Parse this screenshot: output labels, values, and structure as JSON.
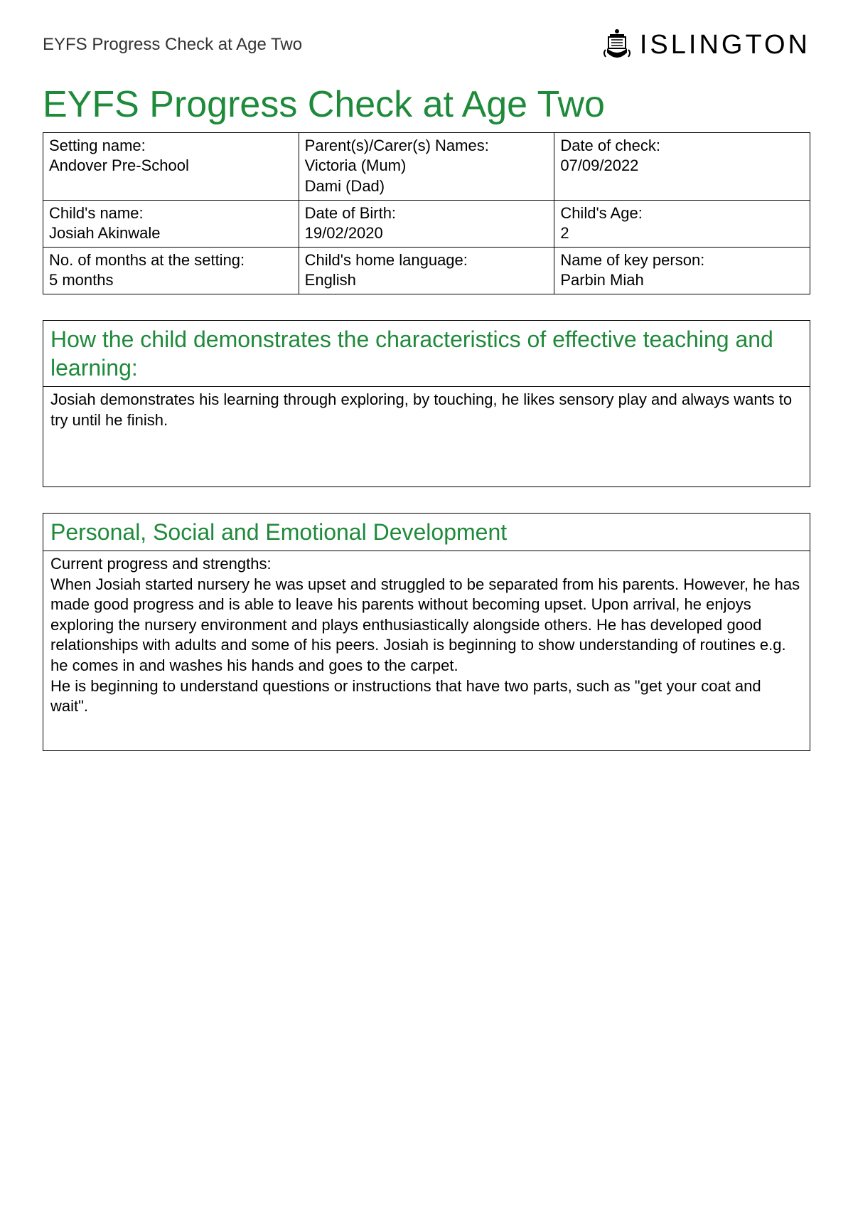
{
  "colors": {
    "accent_green": "#1e8a3a",
    "text": "#000000",
    "header_text": "#333333",
    "border": "#000000",
    "background": "#ffffff"
  },
  "header": {
    "page_label": "EYFS Progress Check at Age Two",
    "logo_text": "ISLINGTON"
  },
  "title": "EYFS Progress Check at Age Two",
  "info": {
    "setting_name": {
      "label": "Setting name:",
      "value": "Andover Pre-School"
    },
    "parents": {
      "label": "Parent(s)/Carer(s) Names:",
      "value": "Victoria (Mum)\nDami (Dad)"
    },
    "date_of_check": {
      "label": "Date of check:",
      "value": "07/09/2022"
    },
    "child_name": {
      "label": "Child's name:",
      "value": "Josiah Akinwale"
    },
    "dob": {
      "label": "Date of Birth:",
      "value": "19/02/2020"
    },
    "child_age": {
      "label": "Child's Age:",
      "value": "2"
    },
    "months_at_setting": {
      "label": "No. of months at the setting:",
      "value": "5 months"
    },
    "home_language": {
      "label": "Child's home language:",
      "value": "English"
    },
    "key_person": {
      "label": "Name of key person:",
      "value": "Parbin Miah"
    }
  },
  "sections": {
    "characteristics": {
      "heading": "How the child demonstrates the characteristics of effective teaching and learning:",
      "body": "Josiah demonstrates his learning through exploring, by touching, he likes sensory play and always wants to try until he finish."
    },
    "psed": {
      "heading": "Personal, Social and Emotional Development",
      "body_label": "Current progress and strengths:",
      "body": "When Josiah started nursery he was upset and struggled to be separated from his parents. However, he has made good progress and is able to leave his parents without becoming upset. Upon arrival, he enjoys exploring the nursery environment and plays enthusiastically alongside others. He has developed good relationships with adults and some of his peers. Josiah is beginning to show understanding of routines  e.g. he comes in and washes his hands and goes to the carpet.\nHe is beginning to understand questions or instructions that have two parts, such as \"get your coat and wait\"."
    }
  }
}
